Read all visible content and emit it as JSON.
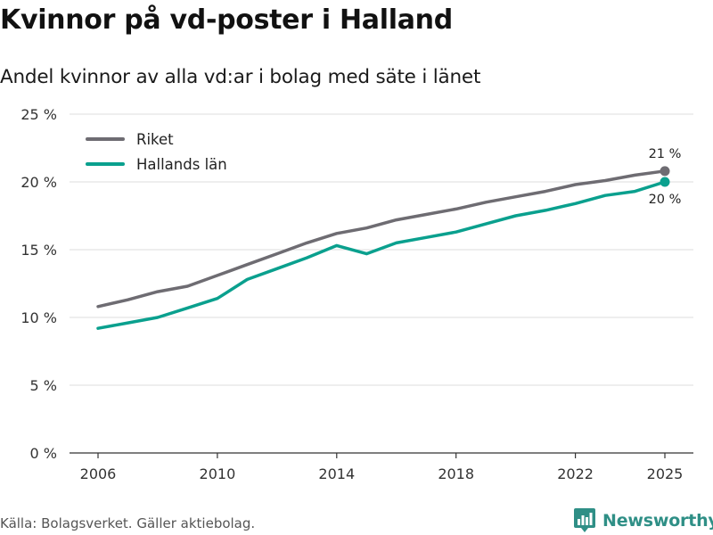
{
  "header": {
    "title": "Kvinnor på vd-poster i Halland",
    "subtitle": "Andel kvinnor av alla vd:ar i bolag med säte i länet"
  },
  "footer": {
    "source": "Källa: Bolagsverket. Gäller aktiebolag.",
    "brand": "Newsworthy",
    "brand_icon": "bar-chart-logo-icon"
  },
  "colors": {
    "riket": "#6e6c72",
    "halland": "#0aa08e",
    "grid": "#dddddd",
    "axis": "#333333",
    "brand": "#2f8f86"
  },
  "chart_data": {
    "type": "line",
    "title": "Kvinnor på vd-poster i Halland",
    "subtitle": "Andel kvinnor av alla vd:ar i bolag med säte i länet",
    "x": [
      2006,
      2007,
      2008,
      2009,
      2010,
      2011,
      2012,
      2013,
      2014,
      2015,
      2016,
      2017,
      2018,
      2019,
      2020,
      2021,
      2022,
      2023,
      2024,
      2025
    ],
    "xticks": [
      2006,
      2010,
      2014,
      2018,
      2022,
      2025
    ],
    "xlim": [
      2006,
      2025
    ],
    "ylim": [
      0,
      25
    ],
    "yticks": [
      0,
      5,
      10,
      15,
      20,
      25
    ],
    "ytick_labels": [
      "0 %",
      "5 %",
      "10 %",
      "15 %",
      "20 %",
      "25 %"
    ],
    "grid": true,
    "legend_position": "top-left",
    "series": [
      {
        "name": "Riket",
        "values": [
          10.8,
          11.3,
          11.9,
          12.3,
          13.1,
          13.9,
          14.7,
          15.5,
          16.2,
          16.6,
          17.2,
          17.6,
          18.0,
          18.5,
          18.9,
          19.3,
          19.8,
          20.1,
          20.5,
          20.8
        ],
        "end_label": "21 %"
      },
      {
        "name": "Hallands län",
        "values": [
          9.2,
          9.6,
          10.0,
          10.7,
          11.4,
          12.8,
          13.6,
          14.4,
          15.3,
          14.7,
          15.5,
          15.9,
          16.3,
          16.9,
          17.5,
          17.9,
          18.4,
          19.0,
          19.3,
          20.0
        ],
        "end_label": "20 %"
      }
    ]
  }
}
